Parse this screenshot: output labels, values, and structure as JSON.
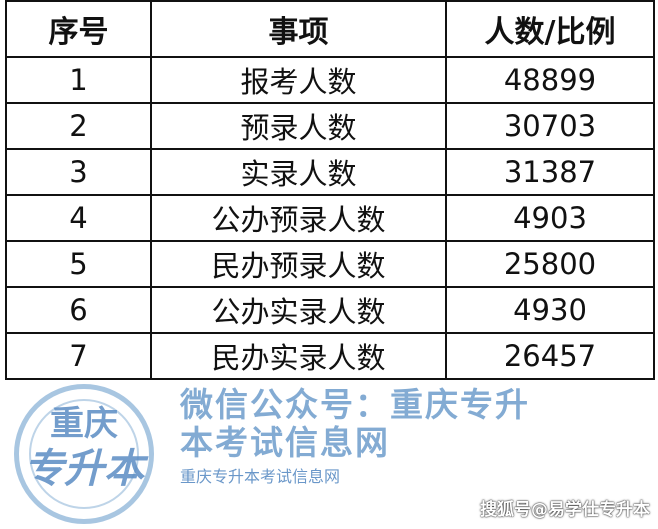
{
  "headers": [
    "序号",
    "事项",
    "人数/比例"
  ],
  "rows": [
    [
      "1",
      "报考人数",
      "48899"
    ],
    [
      "2",
      "预录人数",
      "30703"
    ],
    [
      "3",
      "实录人数",
      "31387"
    ],
    [
      "4",
      "公办预录人数",
      "4903"
    ],
    [
      "5",
      "民办预录人数",
      "25800"
    ],
    [
      "6",
      "公办实录人数",
      "4930"
    ],
    [
      "7",
      "民办实录人数",
      "26457"
    ]
  ],
  "watermark": {
    "text": "微信公众号：重庆专升本考试信息网",
    "stamp_ring": "重庆专升本考试信息网",
    "stamp_center_1": "重庆",
    "stamp_center_2": "专升本",
    "color": "#6ea0cd"
  },
  "source_tag": "搜狐号@易学仕专升本"
}
